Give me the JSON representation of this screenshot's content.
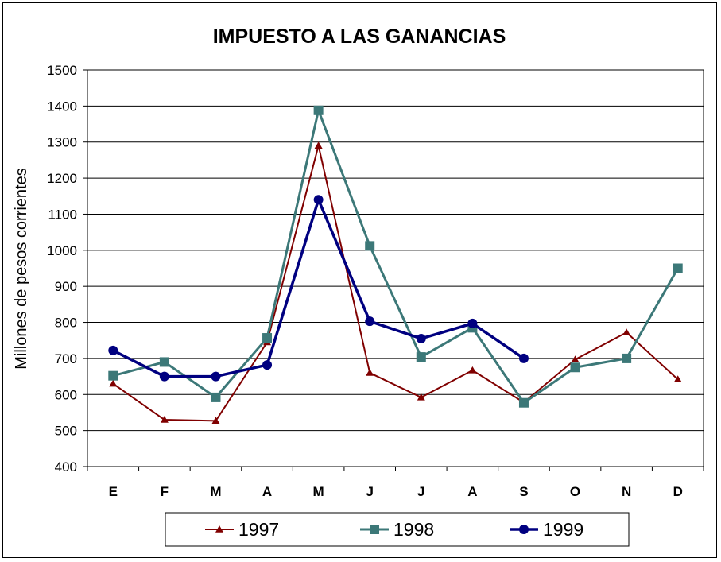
{
  "chart_data": {
    "type": "line",
    "title": "IMPUESTO A LAS GANANCIAS",
    "ylabel": "Millones de pesos corrientes",
    "xlabel": "",
    "ylim": [
      400,
      1500
    ],
    "yticks": [
      400,
      500,
      600,
      700,
      800,
      900,
      1000,
      1100,
      1200,
      1300,
      1400,
      1500
    ],
    "categories": [
      "E",
      "F",
      "M",
      "A",
      "M",
      "J",
      "J",
      "A",
      "S",
      "O",
      "N",
      "D"
    ],
    "grid": "horizontal",
    "legend_position": "bottom",
    "series": [
      {
        "name": "1997",
        "color": "#800000",
        "marker": "triangle",
        "values": [
          630,
          530,
          527,
          745,
          1290,
          660,
          592,
          667,
          578,
          697,
          772,
          642
        ]
      },
      {
        "name": "1998",
        "color": "#3c7878",
        "marker": "square",
        "values": [
          652,
          690,
          592,
          757,
          1388,
          1012,
          704,
          785,
          577,
          675,
          700,
          950
        ]
      },
      {
        "name": "1999",
        "color": "#000080",
        "marker": "circle",
        "values": [
          722,
          650,
          650,
          682,
          1140,
          803,
          755,
          797,
          700,
          null,
          null,
          null
        ]
      }
    ]
  }
}
